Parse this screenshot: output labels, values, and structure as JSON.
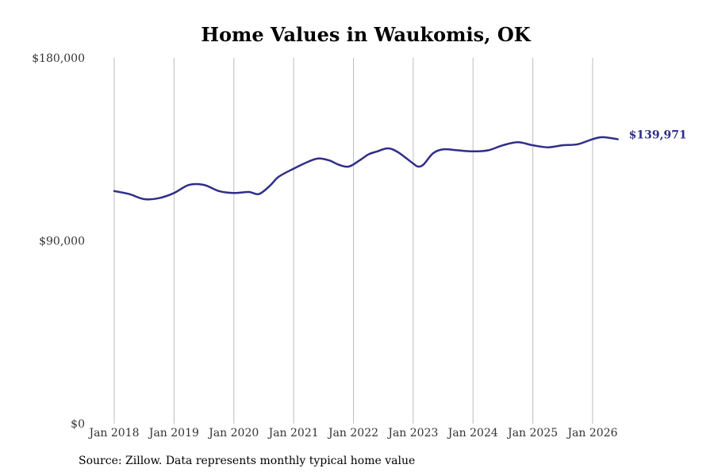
{
  "chart_data": {
    "type": "line",
    "title": "Home Values in Waukomis, OK",
    "xlabel": "",
    "ylabel": "",
    "ylim": [
      0,
      180000
    ],
    "y_ticks": [
      {
        "value": 0,
        "label": "$0"
      },
      {
        "value": 90000,
        "label": "$90,000"
      },
      {
        "value": 180000,
        "label": "$180,000"
      }
    ],
    "x_ticks": [
      {
        "value": 2018,
        "label": "Jan 2018"
      },
      {
        "value": 2019,
        "label": "Jan 2019"
      },
      {
        "value": 2020,
        "label": "Jan 2020"
      },
      {
        "value": 2021,
        "label": "Jan 2021"
      },
      {
        "value": 2022,
        "label": "Jan 2022"
      },
      {
        "value": 2023,
        "label": "Jan 2023"
      },
      {
        "value": 2024,
        "label": "Jan 2024"
      },
      {
        "value": 2025,
        "label": "Jan 2025"
      },
      {
        "value": 2026,
        "label": "Jan 2026"
      }
    ],
    "grid": "vertical",
    "line_color": "#2e2e8a",
    "end_label": "$139,971",
    "series": [
      {
        "x": [
          2018.0,
          2018.25,
          2018.5,
          2018.75,
          2019.0,
          2019.25,
          2019.5,
          2019.75,
          2020.0,
          2020.25,
          2020.42,
          2020.6,
          2020.75,
          2021.0,
          2021.25,
          2021.42,
          2021.6,
          2021.75,
          2021.92,
          2022.1,
          2022.25,
          2022.4,
          2022.58,
          2022.75,
          2023.0,
          2023.08,
          2023.17,
          2023.33,
          2023.5,
          2023.75,
          2024.0,
          2024.25,
          2024.5,
          2024.75,
          2025.0,
          2025.25,
          2025.5,
          2025.75,
          2026.0,
          2026.17,
          2026.42
        ],
        "y": [
          114500,
          113000,
          110500,
          111000,
          113500,
          117500,
          117500,
          114500,
          113500,
          114000,
          113000,
          117000,
          121500,
          125500,
          129000,
          130500,
          129500,
          127500,
          126500,
          129500,
          132500,
          134000,
          135500,
          133500,
          128000,
          126500,
          127500,
          133000,
          135000,
          134500,
          134000,
          134500,
          137000,
          138500,
          137000,
          136000,
          137000,
          137500,
          140000,
          141000,
          139971
        ]
      }
    ]
  },
  "footer": {
    "source": "Source: Zillow. Data represents monthly typical home value"
  }
}
